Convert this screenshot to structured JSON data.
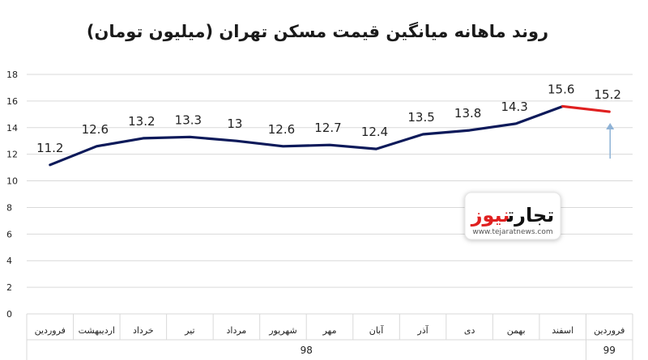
{
  "chart_data": {
    "type": "line",
    "title": "روند ماهانه میانگین قیمت مسکن تهران (میلیون تومان)",
    "categories": [
      "فروردین",
      "اردیبهشت",
      "خرداد",
      "تیر",
      "مرداد",
      "شهریور",
      "مهر",
      "آبان",
      "آذر",
      "دی",
      "بهمن",
      "اسفند",
      "فروردین"
    ],
    "year_groups": [
      {
        "label": "98",
        "start": 0,
        "end": 11
      },
      {
        "label": "99",
        "start": 12,
        "end": 12
      }
    ],
    "series": [
      {
        "values": [
          11.2,
          12.6,
          13.2,
          13.3,
          13,
          12.6,
          12.7,
          12.4,
          13.5,
          13.8,
          14.3,
          15.6,
          15.2
        ],
        "data_labels": [
          "11.2",
          "12.6",
          "13.2",
          "13.3",
          "13",
          "12.6",
          "12.7",
          "12.4",
          "13.5",
          "13.8",
          "14.3",
          "15.6",
          "15.2"
        ]
      }
    ],
    "highlight_last_segment": true,
    "ylim": [
      0,
      18
    ],
    "yticks": [
      "0",
      "2",
      "4",
      "6",
      "8",
      "10",
      "12",
      "14",
      "16",
      "18"
    ],
    "grid": true,
    "colors": {
      "line": "#0d1a5a",
      "highlight": "#e02020",
      "arrow": "#8eb2d6",
      "grid": "#d9d9d9"
    }
  },
  "watermark": {
    "brand": "تجارت نیوز",
    "brand_part1": "تجارت",
    "brand_part2": "نیوز",
    "url": "www.tejaratnews.com"
  }
}
